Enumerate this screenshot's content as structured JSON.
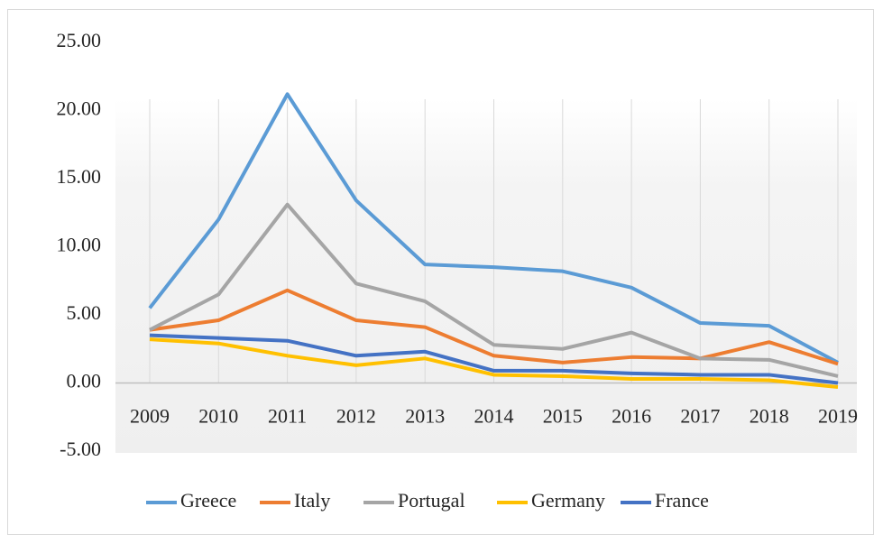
{
  "chart_data": {
    "type": "line",
    "categories": [
      "2009",
      "2010",
      "2011",
      "2012",
      "2013",
      "2014",
      "2015",
      "2016",
      "2017",
      "2018",
      "2019"
    ],
    "series": [
      {
        "name": "Greece",
        "color": "#5b9bd5",
        "values": [
          5.5,
          12.0,
          21.2,
          13.4,
          8.7,
          8.5,
          8.2,
          7.0,
          4.4,
          4.2,
          1.5
        ]
      },
      {
        "name": "Italy",
        "color": "#ed7d31",
        "values": [
          3.9,
          4.6,
          6.8,
          4.6,
          4.1,
          2.0,
          1.5,
          1.9,
          1.8,
          3.0,
          1.4
        ]
      },
      {
        "name": "Portugal",
        "color": "#a5a5a5",
        "values": [
          3.9,
          6.5,
          13.1,
          7.3,
          6.0,
          2.8,
          2.5,
          3.7,
          1.8,
          1.7,
          0.5
        ]
      },
      {
        "name": "Germany",
        "color": "#ffc000",
        "values": [
          3.2,
          2.9,
          2.0,
          1.3,
          1.8,
          0.6,
          0.5,
          0.3,
          0.3,
          0.2,
          -0.3
        ]
      },
      {
        "name": "France",
        "color": "#4472c4",
        "values": [
          3.5,
          3.3,
          3.1,
          2.0,
          2.3,
          0.9,
          0.9,
          0.7,
          0.6,
          0.6,
          0.0
        ]
      }
    ],
    "ylim": [
      -5,
      25
    ],
    "yticks": [
      {
        "value": -5,
        "label": "-5.00"
      },
      {
        "value": 0,
        "label": "0.00"
      },
      {
        "value": 5,
        "label": "5.00"
      },
      {
        "value": 10,
        "label": "10.00"
      },
      {
        "value": 15,
        "label": "15.00"
      },
      {
        "value": 20,
        "label": "20.00"
      },
      {
        "value": 25,
        "label": "25.00"
      }
    ],
    "grid": true,
    "legend": "bottom"
  }
}
